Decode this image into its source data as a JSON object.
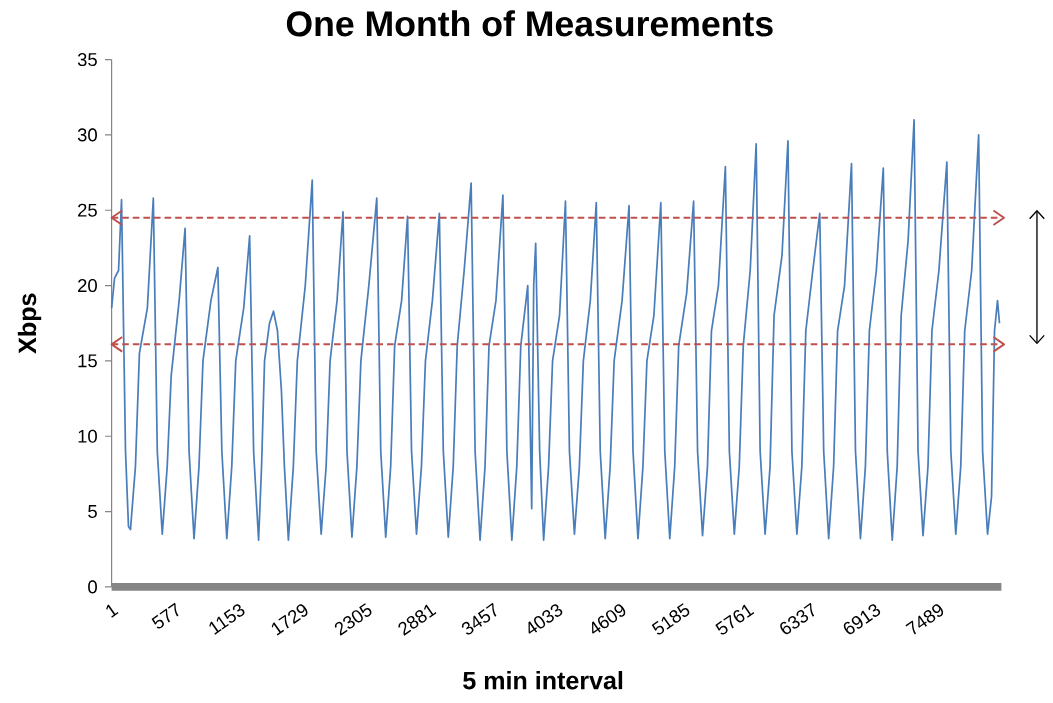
{
  "chart_data": {
    "type": "line",
    "title": "One Month of Measurements",
    "xlabel": "5 min interval",
    "ylabel": "Xbps",
    "xlim": [
      1,
      8064
    ],
    "xticks": [
      1,
      577,
      1153,
      1729,
      2305,
      2881,
      3457,
      4033,
      4609,
      5185,
      5761,
      6337,
      6913,
      7489
    ],
    "ylim": [
      0,
      35
    ],
    "yticks": [
      0,
      5,
      10,
      15,
      20,
      25,
      30,
      35
    ],
    "marker": "none",
    "line_style": "solid",
    "series": [
      {
        "color": "#4a7ebb",
        "x": [
          1,
          28,
          64,
          91,
          127,
          154,
          172,
          217,
          253,
          325,
          379,
          415,
          460,
          505,
          541,
          613,
          667,
          703,
          748,
          793,
          829,
          901,
          964,
          1000,
          1045,
          1090,
          1126,
          1198,
          1252,
          1288,
          1333,
          1360,
          1387,
          1432,
          1468,
          1504,
          1540,
          1567,
          1603,
          1648,
          1684,
          1756,
          1819,
          1855,
          1900,
          1945,
          1981,
          2044,
          2098,
          2134,
          2179,
          2224,
          2260,
          2332,
          2404,
          2440,
          2485,
          2530,
          2566,
          2629,
          2683,
          2719,
          2764,
          2809,
          2845,
          2908,
          2971,
          3007,
          3052,
          3097,
          3133,
          3196,
          3259,
          3295,
          3340,
          3385,
          3421,
          3484,
          3547,
          3583,
          3628,
          3673,
          3709,
          3772,
          3808,
          3826,
          3844,
          3880,
          3916,
          3961,
          3997,
          4060,
          4114,
          4150,
          4195,
          4240,
          4276,
          4339,
          4393,
          4429,
          4474,
          4519,
          4555,
          4627,
          4690,
          4726,
          4771,
          4816,
          4852,
          4915,
          4978,
          5014,
          5059,
          5104,
          5140,
          5212,
          5275,
          5311,
          5356,
          5401,
          5437,
          5500,
          5563,
          5599,
          5644,
          5689,
          5725,
          5788,
          5842,
          5878,
          5923,
          5968,
          6004,
          6076,
          6130,
          6166,
          6211,
          6256,
          6292,
          6355,
          6418,
          6454,
          6499,
          6544,
          6580,
          6643,
          6706,
          6742,
          6787,
          6832,
          6868,
          6931,
          6994,
          7030,
          7075,
          7120,
          7156,
          7219,
          7273,
          7309,
          7354,
          7399,
          7435,
          7498,
          7570,
          7606,
          7651,
          7696,
          7732,
          7795,
          7858,
          7894,
          7939,
          7975,
          8002,
          8029,
          8047
        ],
        "values": [
          18.5,
          20.5,
          21,
          25.7,
          9,
          4,
          3.8,
          8,
          15.5,
          18.5,
          25.8,
          9,
          3.5,
          8,
          14,
          19,
          23.8,
          9,
          3.2,
          8,
          15,
          19,
          21.2,
          9,
          3.2,
          8,
          15,
          18.5,
          23.3,
          9,
          3.1,
          8,
          15,
          17.5,
          18.3,
          17,
          13,
          8,
          3.1,
          8,
          15,
          20,
          27,
          9,
          3.5,
          8,
          15,
          19,
          24.9,
          9,
          3.3,
          8,
          15,
          20,
          25.8,
          9,
          3.3,
          8,
          16,
          19,
          24.6,
          9,
          3.5,
          8,
          15,
          19,
          24.8,
          9,
          3.3,
          8,
          16,
          21,
          26.8,
          9,
          3.1,
          8,
          16,
          19,
          26,
          9,
          3.1,
          8,
          16,
          20,
          5.2,
          20,
          22.8,
          9,
          3.1,
          8,
          15,
          18,
          25.6,
          9,
          3.5,
          8,
          15,
          19,
          25.5,
          9,
          3.2,
          8,
          15,
          19,
          25.3,
          9,
          3.2,
          8,
          15,
          18,
          25.5,
          9,
          3.2,
          8,
          16,
          19.5,
          25.6,
          9,
          3.4,
          8,
          17,
          20,
          27.9,
          9,
          3.5,
          8,
          16,
          21,
          29.4,
          9,
          3.5,
          8,
          18,
          22,
          29.6,
          9,
          3.5,
          8,
          17,
          21,
          24.8,
          9,
          3.2,
          8,
          17,
          20,
          28.1,
          9,
          3.2,
          8,
          17,
          21,
          27.8,
          9,
          3.1,
          8,
          18,
          23,
          31,
          9,
          3.4,
          8,
          17,
          21,
          28.2,
          9,
          3.5,
          8,
          17,
          21,
          30,
          9,
          3.5,
          6,
          17,
          19,
          17.5
        ]
      }
    ],
    "ref_lines": [
      {
        "axis": "y",
        "value": 24.5,
        "color": "#c0504d",
        "line_style": "dashed"
      },
      {
        "axis": "y",
        "value": 16.1,
        "color": "#c0504d",
        "line_style": "dashed"
      }
    ]
  }
}
